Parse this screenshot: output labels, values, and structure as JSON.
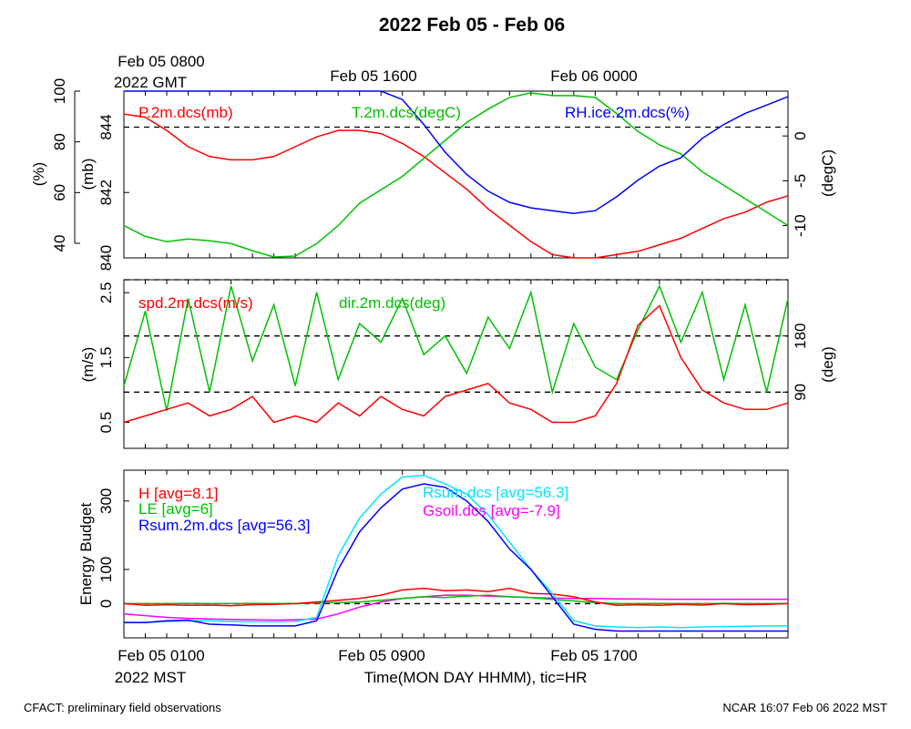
{
  "title": "2022 Feb 05 - Feb 06",
  "top_axis": {
    "ticks": [
      "Feb 05 0800",
      "Feb 05 1600",
      "Feb 06 0000"
    ],
    "sub_label": "2022 GMT"
  },
  "bottom_axis": {
    "ticks": [
      "Feb 05 0100",
      "Feb 05 0900",
      "Feb 05 1700"
    ],
    "sub_label": "2022 MST",
    "xlabel": "Time(MON DAY HHMM), tic=HR"
  },
  "footer": {
    "left": "CFACT: preliminary field observations",
    "right": "NCAR 16:07 Feb 06 2022 MST"
  },
  "colors": {
    "red": "#ff0000",
    "green": "#00c000",
    "blue": "#0000ff",
    "cyan": "#00e5ff",
    "magenta": "#ff00ff",
    "black": "#000000"
  },
  "chart_data": [
    {
      "type": "line",
      "panel": "pressure-temperature-humidity",
      "x_range_hours_mst": [
        0,
        31
      ],
      "series": [
        {
          "name": "P.2m.dcs(mb)",
          "axis": "pressure_mb",
          "color": "red",
          "x": [
            0,
            1,
            2,
            3,
            4,
            5,
            6,
            7,
            8,
            9,
            10,
            11,
            12,
            13,
            14,
            15,
            16,
            17,
            18,
            19,
            20,
            21,
            22,
            23,
            24,
            25,
            26,
            27,
            28,
            29,
            30,
            31
          ],
          "values": [
            844.4,
            844.3,
            843.9,
            843.4,
            843.1,
            843,
            843,
            843.1,
            843.4,
            843.7,
            843.9,
            843.9,
            843.8,
            843.5,
            843.1,
            842.6,
            842.1,
            841.5,
            841,
            840.5,
            840.1,
            840,
            840,
            840.1,
            840.2,
            840.4,
            840.6,
            840.9,
            841.2,
            841.4,
            841.7,
            841.9
          ]
        },
        {
          "name": "T.2m.dcs(degC)",
          "axis": "temp_degC",
          "color": "green",
          "x": [
            0,
            1,
            2,
            3,
            4,
            5,
            6,
            7,
            8,
            9,
            10,
            11,
            12,
            13,
            14,
            15,
            16,
            17,
            18,
            19,
            20,
            21,
            22,
            23,
            24,
            25,
            26,
            27,
            28,
            29,
            30,
            31
          ],
          "values": [
            -10,
            -11.2,
            -11.8,
            -11.5,
            -11.7,
            -12,
            -12.8,
            -13.5,
            -13.4,
            -12,
            -10,
            -7.5,
            -6,
            -4.5,
            -2.5,
            -0.5,
            1.5,
            3,
            4.3,
            4.8,
            4.5,
            4.5,
            4.3,
            2.5,
            0.5,
            -1,
            -2,
            -4,
            -5.5,
            -7,
            -8.5,
            -10
          ]
        },
        {
          "name": "RH.ice.2m.dcs(%)",
          "axis": "rh_pct",
          "color": "blue",
          "x": [
            0,
            1,
            2,
            3,
            4,
            5,
            6,
            7,
            8,
            9,
            10,
            11,
            12,
            13,
            14,
            15,
            16,
            17,
            18,
            19,
            20,
            21,
            22,
            23,
            24,
            25,
            26,
            27,
            28,
            29,
            30,
            31
          ],
          "values": [
            100,
            100,
            100,
            100,
            100,
            100,
            100,
            100,
            100,
            100,
            100,
            100,
            100,
            97,
            88,
            78,
            70,
            64,
            60,
            58,
            57,
            56,
            57,
            62,
            68,
            73,
            76,
            83,
            88,
            92,
            95,
            98
          ]
        }
      ],
      "axes": {
        "rh_pct": {
          "label": "(%)",
          "ylim": [
            40,
            100
          ],
          "ticks": [
            "40",
            "60",
            "80",
            "100"
          ]
        },
        "pressure_mb": {
          "label": "(mb)",
          "ylim": [
            840,
            845.1
          ],
          "ticks": [
            "840",
            "842",
            "844"
          ]
        },
        "temp_degC": {
          "label": "(degC)",
          "ylim": [
            -13.6,
            5
          ],
          "ticks": [
            "-10",
            "-5",
            "0"
          ]
        }
      },
      "reference_lines": {
        "pressure_mb": [
          844
        ]
      }
    },
    {
      "type": "line",
      "panel": "wind",
      "x_range_hours_mst": [
        0,
        31
      ],
      "series": [
        {
          "name": "spd.2m.dcs(m/s)",
          "axis": "speed_ms",
          "color": "red",
          "x": [
            0,
            1,
            2,
            3,
            4,
            5,
            6,
            7,
            8,
            9,
            10,
            11,
            12,
            13,
            14,
            15,
            16,
            17,
            18,
            19,
            20,
            21,
            22,
            23,
            24,
            25,
            26,
            27,
            28,
            29,
            30,
            31
          ],
          "values": [
            0.5,
            0.6,
            0.7,
            0.8,
            0.6,
            0.7,
            0.9,
            0.5,
            0.6,
            0.5,
            0.8,
            0.6,
            0.9,
            0.7,
            0.6,
            0.9,
            1,
            1.1,
            0.8,
            0.7,
            0.5,
            0.5,
            0.6,
            1.1,
            2,
            2.3,
            1.5,
            1,
            0.8,
            0.7,
            0.7,
            0.8
          ]
        },
        {
          "name": "dir.2m.dcs(deg)",
          "axis": "dir_deg",
          "color": "green",
          "x": [
            0,
            1,
            2,
            3,
            4,
            5,
            6,
            7,
            8,
            9,
            10,
            11,
            12,
            13,
            14,
            15,
            16,
            17,
            18,
            19,
            20,
            21,
            22,
            23,
            24,
            25,
            26,
            27,
            28,
            29,
            30,
            31
          ],
          "values": [
            100,
            220,
            60,
            240,
            90,
            260,
            140,
            230,
            100,
            250,
            110,
            200,
            170,
            240,
            150,
            180,
            120,
            210,
            160,
            250,
            90,
            200,
            130,
            110,
            190,
            260,
            170,
            250,
            110,
            230,
            90,
            240
          ]
        }
      ],
      "axes": {
        "speed_ms": {
          "label": "(m/s)",
          "ylim": [
            0.1,
            2.7
          ],
          "ticks": [
            "0.5",
            "1.5",
            "2.5"
          ]
        },
        "dir_deg": {
          "label": "(deg)",
          "ylim": [
            0,
            270
          ],
          "ticks": [
            "90",
            "180"
          ]
        }
      },
      "reference_lines": {
        "dir_deg": [
          90,
          180,
          270
        ]
      }
    },
    {
      "type": "line",
      "panel": "energy-budget",
      "ylabel": "Energy Budget",
      "ylim": [
        -100,
        390
      ],
      "yticks": [
        "0",
        "100",
        "300"
      ],
      "x_range_hours_mst": [
        0,
        31
      ],
      "series": [
        {
          "name": "H [avg=8.1]",
          "color": "red",
          "x": [
            0,
            1,
            2,
            3,
            4,
            5,
            6,
            7,
            8,
            9,
            10,
            11,
            12,
            13,
            14,
            15,
            16,
            17,
            18,
            19,
            20,
            21,
            22,
            23,
            24,
            25,
            26,
            27,
            28,
            29,
            30,
            31
          ],
          "values": [
            0,
            -5,
            -3,
            -5,
            -4,
            -6,
            -3,
            -2,
            0,
            5,
            10,
            15,
            25,
            40,
            45,
            38,
            40,
            35,
            45,
            30,
            28,
            20,
            5,
            -5,
            -3,
            -5,
            -2,
            -4,
            0,
            -3,
            -2,
            0
          ]
        },
        {
          "name": "LE [avg=6]",
          "color": "green",
          "x": [
            0,
            1,
            2,
            3,
            4,
            5,
            6,
            7,
            8,
            9,
            10,
            11,
            12,
            13,
            14,
            15,
            16,
            17,
            18,
            19,
            20,
            21,
            22,
            23,
            24,
            25,
            26,
            27,
            28,
            29,
            30,
            31
          ],
          "values": [
            0,
            0,
            0,
            1,
            0,
            0,
            1,
            0,
            0,
            2,
            3,
            5,
            10,
            15,
            20,
            18,
            22,
            25,
            20,
            18,
            12,
            8,
            3,
            0,
            0,
            1,
            0,
            0,
            1,
            0,
            0,
            0
          ]
        },
        {
          "name": "Rsum.2m.dcs [avg=56.3]",
          "color": "blue",
          "x": [
            0,
            1,
            2,
            3,
            4,
            5,
            6,
            7,
            8,
            9,
            10,
            11,
            12,
            13,
            14,
            15,
            16,
            17,
            18,
            19,
            20,
            21,
            22,
            23,
            24,
            25,
            26,
            27,
            28,
            29,
            30,
            31
          ],
          "values": [
            -55,
            -55,
            -50,
            -48,
            -60,
            -62,
            -65,
            -65,
            -65,
            -50,
            100,
            210,
            280,
            335,
            350,
            340,
            300,
            240,
            160,
            100,
            20,
            -60,
            -75,
            -80,
            -80,
            -80,
            -80,
            -80,
            -80,
            -80,
            -80,
            -80
          ]
        },
        {
          "name": "Rsum.dcs [avg=56.3]",
          "color": "cyan",
          "x": [
            0,
            1,
            2,
            3,
            4,
            5,
            6,
            7,
            8,
            9,
            10,
            11,
            12,
            13,
            14,
            15,
            16,
            17,
            18,
            19,
            20,
            21,
            22,
            23,
            24,
            25,
            26,
            27,
            28,
            29,
            30,
            31
          ],
          "values": [
            -55,
            -55,
            -52,
            -50,
            -50,
            -52,
            -53,
            -53,
            -52,
            -40,
            140,
            250,
            320,
            370,
            375,
            350,
            320,
            260,
            180,
            100,
            30,
            -50,
            -65,
            -68,
            -70,
            -68,
            -70,
            -68,
            -67,
            -66,
            -65,
            -65
          ]
        },
        {
          "name": "Gsoil.dcs [avg=-7.9]",
          "color": "magenta",
          "x": [
            0,
            1,
            2,
            3,
            4,
            5,
            6,
            7,
            8,
            9,
            10,
            11,
            12,
            13,
            14,
            15,
            16,
            17,
            18,
            19,
            20,
            21,
            22,
            23,
            24,
            25,
            26,
            27,
            28,
            29,
            30,
            31
          ],
          "values": [
            -30,
            -35,
            -40,
            -43,
            -45,
            -46,
            -47,
            -48,
            -47,
            -45,
            -30,
            -10,
            5,
            15,
            20,
            25,
            25,
            22,
            20,
            18,
            16,
            15,
            15,
            14,
            14,
            13,
            13,
            13,
            13,
            13,
            13,
            13
          ]
        }
      ],
      "reference_lines": {
        "energy": [
          0
        ]
      }
    }
  ]
}
